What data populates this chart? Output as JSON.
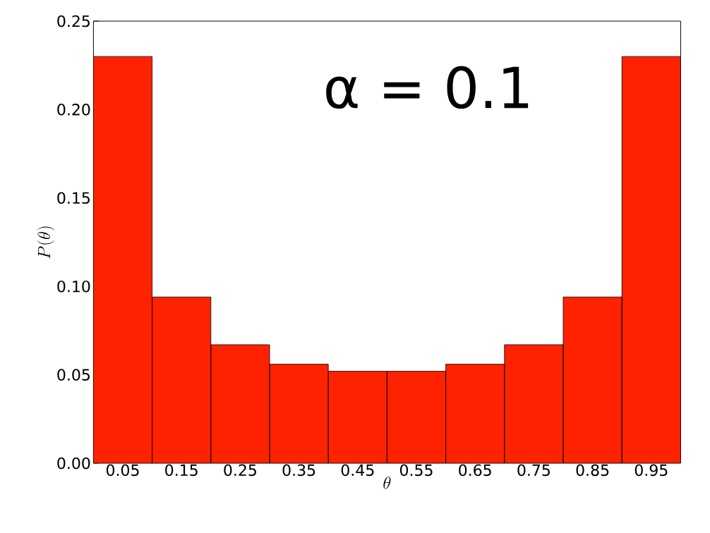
{
  "chart_data": {
    "type": "bar",
    "categories": [
      "0.05",
      "0.15",
      "0.25",
      "0.35",
      "0.45",
      "0.55",
      "0.65",
      "0.75",
      "0.85",
      "0.95"
    ],
    "values": [
      0.23,
      0.094,
      0.067,
      0.056,
      0.052,
      0.052,
      0.056,
      0.067,
      0.094,
      0.23
    ],
    "color": "#ff2200",
    "xlabel": "\\theta",
    "ylabel": "P(\\theta)",
    "annotations": [
      "α = 0.1"
    ],
    "ylim": [
      0,
      0.25
    ],
    "yticks": [
      {
        "value": 0,
        "label": "0.00"
      },
      {
        "value": 0.05,
        "label": "0.05"
      },
      {
        "value": 0.1,
        "label": "0.10"
      },
      {
        "value": 0.15,
        "label": "0.15"
      },
      {
        "value": 0.2,
        "label": "0.20"
      },
      {
        "value": 0.25,
        "label": "0.25"
      }
    ]
  }
}
